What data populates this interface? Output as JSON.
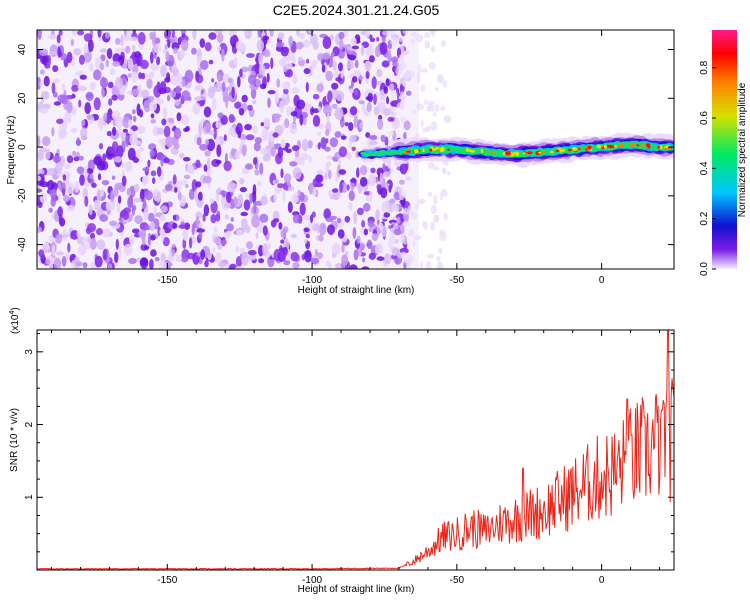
{
  "title": "C2E5.2024.301.21.24.G05",
  "chart_data": [
    {
      "type": "heatmap",
      "xlabel": "Height of straight line (km)",
      "ylabel": "Frequency (Hz)",
      "xlim": [
        -195,
        25
      ],
      "ylim": [
        -50,
        48
      ],
      "xticks": [
        -150,
        -100,
        -50,
        0
      ],
      "yticks": [
        -40,
        -20,
        0,
        20,
        40
      ],
      "signal_track": {
        "x": [
          -82,
          -70,
          -60,
          -50,
          -40,
          -30,
          -20,
          -10,
          0,
          10,
          20,
          24
        ],
        "y": [
          -3,
          -2,
          -1,
          -1,
          -2,
          -3,
          -2,
          -1,
          0,
          1,
          0,
          0
        ]
      },
      "noise_region_x": [
        -195,
        -70
      ],
      "colorbar": {
        "label": "Normalized spectral amplitude",
        "range": [
          0,
          0.95
        ],
        "ticks": [
          0.0,
          0.2,
          0.4,
          0.6,
          0.8
        ],
        "tick_labels": [
          "0.0",
          "0.2",
          "0.4",
          "0.6",
          "0.8"
        ],
        "colormap": [
          "#f5ecff",
          "#7d1fe6",
          "#1010d0",
          "#00c8ff",
          "#00e860",
          "#d8e000",
          "#ff8000",
          "#ff0000",
          "#ff1c8c"
        ]
      }
    },
    {
      "type": "line",
      "xlabel": "Height of straight line (km)",
      "ylabel": "SNR (10 * v/v)",
      "scale_label": "(x10",
      "scale_exp": "4",
      "scale_close": ")",
      "xlim": [
        -195,
        25
      ],
      "ylim": [
        0,
        3.3
      ],
      "xticks": [
        -150,
        -100,
        -50,
        0
      ],
      "yticks": [
        1,
        2,
        3
      ],
      "series": [
        {
          "color": "#e8261b",
          "x": [
            -195,
            -150,
            -100,
            -70,
            -65,
            -60,
            -55,
            -50,
            -45,
            -40,
            -35,
            -30,
            -25,
            -20,
            -15,
            -10,
            -5,
            0,
            5,
            10,
            15,
            20,
            22,
            24,
            25
          ],
          "y": [
            0.01,
            0.01,
            0.01,
            0.02,
            0.1,
            0.22,
            0.38,
            0.42,
            0.5,
            0.45,
            0.55,
            0.6,
            0.65,
            0.7,
            0.8,
            0.9,
            1.0,
            1.1,
            1.15,
            1.3,
            1.4,
            1.5,
            1.7,
            1.5,
            1.6
          ]
        }
      ],
      "peaks": [
        {
          "x": 9,
          "y": 2.35
        },
        {
          "x": 23,
          "y": 3.3
        },
        {
          "x": 21,
          "y": 2.2
        },
        {
          "x": -27,
          "y": 1.4
        },
        {
          "x": 15,
          "y": 2.1
        }
      ]
    }
  ]
}
